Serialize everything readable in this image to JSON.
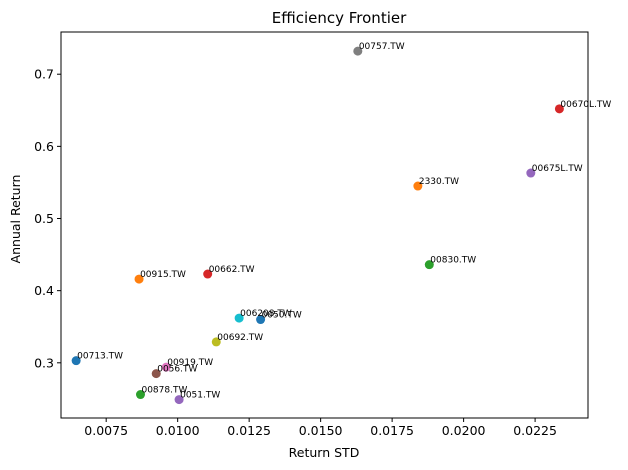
{
  "chart_data": {
    "type": "scatter",
    "title": "Efficiency Frontier",
    "xlabel": "Return STD",
    "ylabel": "Annual Return",
    "xlim": [
      0.00592,
      0.02435
    ],
    "ylim": [
      0.2235,
      0.7585
    ],
    "xticks": [
      0.0075,
      0.01,
      0.0125,
      0.015,
      0.0175,
      0.02,
      0.0225
    ],
    "xtick_labels": [
      "0.0075",
      "0.0100",
      "0.0125",
      "0.0150",
      "0.0175",
      "0.0200",
      "0.0225"
    ],
    "yticks": [
      0.3,
      0.4,
      0.5,
      0.6,
      0.7
    ],
    "ytick_labels": [
      "0.3",
      "0.4",
      "0.5",
      "0.6",
      "0.7"
    ],
    "grid": false,
    "points": [
      {
        "label": "00713.TW",
        "x": 0.00645,
        "y": 0.303,
        "color": "#1f77b4"
      },
      {
        "label": "00915.TW",
        "x": 0.00865,
        "y": 0.416,
        "color": "#ff7f0e"
      },
      {
        "label": "00878.TW",
        "x": 0.0087,
        "y": 0.256,
        "color": "#2ca02c"
      },
      {
        "label": "00662.TW",
        "x": 0.01105,
        "y": 0.423,
        "color": "#d62728"
      },
      {
        "label": "0051.TW",
        "x": 0.01005,
        "y": 0.249,
        "color": "#9467bd"
      },
      {
        "label": "0056.TW",
        "x": 0.00925,
        "y": 0.285,
        "color": "#8c564b"
      },
      {
        "label": "00919.TW",
        "x": 0.0096,
        "y": 0.294,
        "color": "#e377c2"
      },
      {
        "label": "00757.TW",
        "x": 0.0163,
        "y": 0.732,
        "color": "#7f7f7f"
      },
      {
        "label": "00692.TW",
        "x": 0.01135,
        "y": 0.329,
        "color": "#bcbd22"
      },
      {
        "label": "006208.TW",
        "x": 0.01215,
        "y": 0.362,
        "color": "#17becf"
      },
      {
        "label": "0050.TW",
        "x": 0.0129,
        "y": 0.36,
        "color": "#1f77b4"
      },
      {
        "label": "2330.TW",
        "x": 0.0184,
        "y": 0.545,
        "color": "#ff7f0e"
      },
      {
        "label": "00830.TW",
        "x": 0.0188,
        "y": 0.436,
        "color": "#2ca02c"
      },
      {
        "label": "00670L.TW",
        "x": 0.02335,
        "y": 0.652,
        "color": "#d62728"
      },
      {
        "label": "00675L.TW",
        "x": 0.02235,
        "y": 0.563,
        "color": "#9467bd"
      }
    ]
  }
}
